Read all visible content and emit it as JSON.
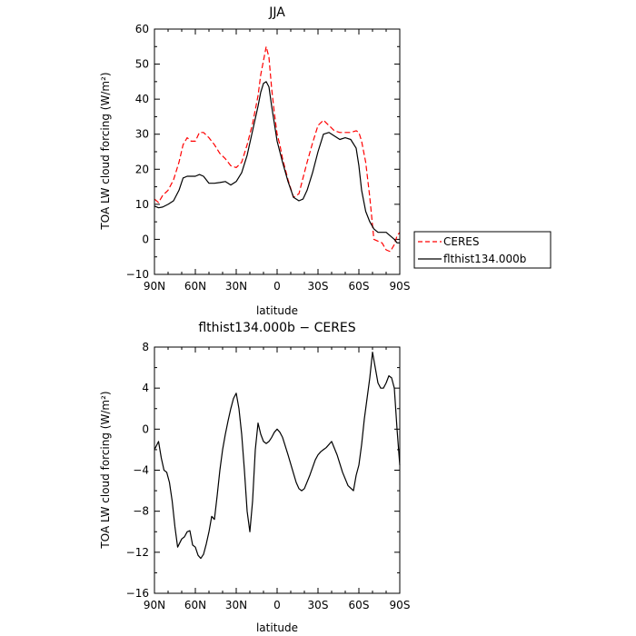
{
  "colors": {
    "ceres": "#ff0000",
    "model": "#000000",
    "axis": "#000000",
    "background": "#ffffff"
  },
  "chart_data": [
    {
      "type": "line",
      "title": "JJA",
      "xlabel": "latitude",
      "ylabel": "TOA LW cloud forcing (W/m²)",
      "xlim": [
        90,
        -90
      ],
      "ylim": [
        -10,
        60
      ],
      "xticks": [
        90,
        60,
        30,
        0,
        -30,
        -60,
        -90
      ],
      "xtick_labels": [
        "90N",
        "60N",
        "30N",
        "0",
        "30S",
        "60S",
        "90S"
      ],
      "yticks": [
        -10,
        0,
        10,
        20,
        30,
        40,
        50,
        60
      ],
      "ytick_labels": [
        "−10",
        "0",
        "10",
        "20",
        "30",
        "40",
        "50",
        "60"
      ],
      "legend_position": "outside-right",
      "series": [
        {
          "name": "CERES",
          "style": "dashed",
          "color": "#ff0000",
          "x": [
            90,
            87,
            84,
            80,
            76,
            72,
            69,
            66,
            63,
            60,
            57,
            54,
            50,
            46,
            42,
            38,
            34,
            30,
            26,
            22,
            18,
            14,
            12,
            10,
            8,
            6,
            4,
            2,
            0,
            -2,
            -4,
            -8,
            -12,
            -16,
            -19,
            -22,
            -26,
            -30,
            -34,
            -38,
            -42,
            -46,
            -50,
            -54,
            -58,
            -60,
            -62,
            -65,
            -68,
            -71,
            -74,
            -77,
            -80,
            -83,
            -86,
            -88,
            -90
          ],
          "y": [
            11.5,
            10.5,
            12.5,
            14,
            17,
            22,
            27,
            29,
            28,
            28,
            30.5,
            30.5,
            29,
            27,
            24.5,
            23,
            21,
            20.5,
            22,
            27,
            33,
            41,
            47,
            51,
            55,
            52,
            43,
            36,
            30,
            27,
            23,
            17,
            12,
            13,
            17.5,
            22,
            27.5,
            32.5,
            34,
            32.5,
            31,
            30.5,
            30.5,
            30.5,
            31,
            30.5,
            28,
            22,
            12,
            0,
            -0.5,
            -1,
            -3,
            -3.5,
            -1.5,
            1,
            2
          ]
        },
        {
          "name": "flthist134.000b",
          "style": "solid",
          "color": "#000000",
          "x": [
            90,
            87,
            84,
            80,
            76,
            72,
            69,
            66,
            63,
            60,
            57,
            54,
            50,
            46,
            42,
            38,
            34,
            30,
            26,
            22,
            18,
            14,
            12,
            10,
            8,
            6,
            4,
            2,
            0,
            -2,
            -4,
            -8,
            -12,
            -16,
            -19,
            -22,
            -26,
            -30,
            -34,
            -38,
            -42,
            -46,
            -50,
            -54,
            -58,
            -60,
            -62,
            -65,
            -68,
            -71,
            -74,
            -77,
            -80,
            -83,
            -86,
            -88,
            -90
          ],
          "y": [
            9.5,
            9,
            9.2,
            10,
            11,
            14,
            17.5,
            18,
            18,
            18,
            18.5,
            18,
            16,
            16,
            16.2,
            16.5,
            15.5,
            16.5,
            19,
            24,
            31,
            38,
            42,
            44.5,
            45,
            43.5,
            38,
            33,
            28,
            25,
            22,
            16.5,
            12,
            11,
            11.5,
            14,
            19,
            25,
            30,
            30.5,
            29.5,
            28.5,
            29,
            28.5,
            26,
            21,
            14,
            8,
            5,
            3,
            2,
            2,
            2,
            1,
            0,
            -1,
            -1
          ]
        }
      ]
    },
    {
      "type": "line",
      "title": "flthist134.000b − CERES",
      "xlabel": "latitude",
      "ylabel": "TOA LW cloud forcing (W/m²)",
      "xlim": [
        90,
        -90
      ],
      "ylim": [
        -16,
        8
      ],
      "xticks": [
        90,
        60,
        30,
        0,
        -30,
        -60,
        -90
      ],
      "xtick_labels": [
        "90N",
        "60N",
        "30N",
        "0",
        "30S",
        "60S",
        "90S"
      ],
      "yticks": [
        -16,
        -12,
        -8,
        -4,
        0,
        4,
        8
      ],
      "ytick_labels": [
        "−16",
        "−12",
        "−8",
        "−4",
        "0",
        "4",
        "8"
      ],
      "series": [
        {
          "style": "solid",
          "color": "#000000",
          "x": [
            90,
            87,
            85,
            83,
            81,
            79,
            77,
            75,
            73,
            70,
            68,
            66,
            64,
            62,
            60,
            58,
            56,
            54,
            52,
            50,
            48,
            46,
            44,
            42,
            40,
            38,
            36,
            34,
            32,
            30,
            28,
            26,
            24,
            22,
            20,
            18,
            16,
            14,
            12,
            10,
            8,
            6,
            4,
            2,
            0,
            -2,
            -4,
            -8,
            -12,
            -14,
            -16,
            -18,
            -20,
            -24,
            -28,
            -30,
            -32,
            -34,
            -36,
            -40,
            -44,
            -48,
            -52,
            -56,
            -58,
            -60,
            -62,
            -64,
            -66,
            -68,
            -70,
            -72,
            -74,
            -76,
            -78,
            -80,
            -82,
            -84,
            -86,
            -88,
            -90
          ],
          "y": [
            -2,
            -1.2,
            -2.8,
            -4,
            -4.2,
            -5.2,
            -7,
            -9.5,
            -11.5,
            -10.7,
            -10.5,
            -10,
            -9.9,
            -11.3,
            -11.5,
            -12.3,
            -12.6,
            -12.2,
            -11.2,
            -10,
            -8.5,
            -8.8,
            -6.5,
            -4,
            -2,
            -0.5,
            0.8,
            2,
            3,
            3.5,
            2,
            -0.5,
            -4,
            -8,
            -10,
            -7,
            -2,
            0.6,
            -0.5,
            -1.2,
            -1.4,
            -1.2,
            -0.8,
            -0.3,
            0,
            -0.3,
            -0.8,
            -2.5,
            -4.3,
            -5.2,
            -5.8,
            -6,
            -5.8,
            -4.5,
            -3,
            -2.5,
            -2.2,
            -2,
            -1.8,
            -1.2,
            -2.5,
            -4.2,
            -5.5,
            -6,
            -4.5,
            -3.5,
            -1.5,
            1,
            3,
            5,
            7.5,
            6,
            4.5,
            4,
            4,
            4.5,
            5.2,
            5,
            4,
            0,
            -3.5
          ]
        }
      ]
    }
  ]
}
